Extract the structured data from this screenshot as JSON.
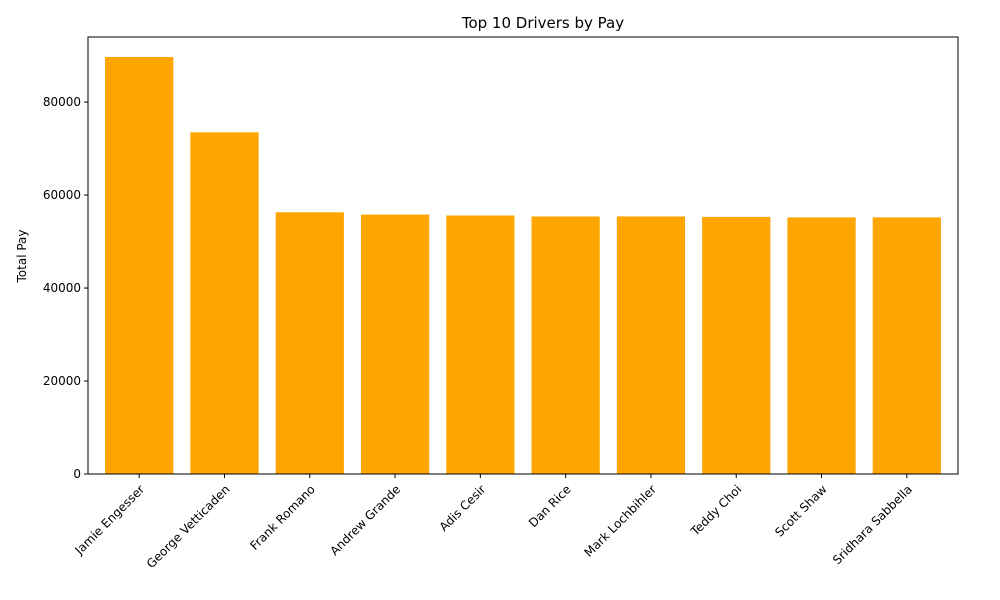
{
  "chart_data": {
    "type": "bar",
    "title": "Top 10 Drivers by Pay",
    "xlabel": "",
    "ylabel": "Total Pay",
    "categories": [
      "Jamie Engesser",
      "George Vetticaden",
      "Frank Romano",
      "Andrew Grande",
      "Adis Cesir",
      "Dan Rice",
      "Mark Lochbihler",
      "Teddy Choi",
      "Scott Shaw",
      "Sridhara Sabbella"
    ],
    "values": [
      89700,
      73500,
      56300,
      55800,
      55600,
      55400,
      55400,
      55300,
      55200,
      55200
    ],
    "ylim": [
      0,
      94000
    ],
    "yticks": [
      0,
      20000,
      40000,
      60000,
      80000
    ],
    "ytick_labels": [
      "0",
      "20000",
      "40000",
      "60000",
      "80000"
    ],
    "bar_color": "#ffa500",
    "grid": false,
    "xtick_rotation": 45
  }
}
